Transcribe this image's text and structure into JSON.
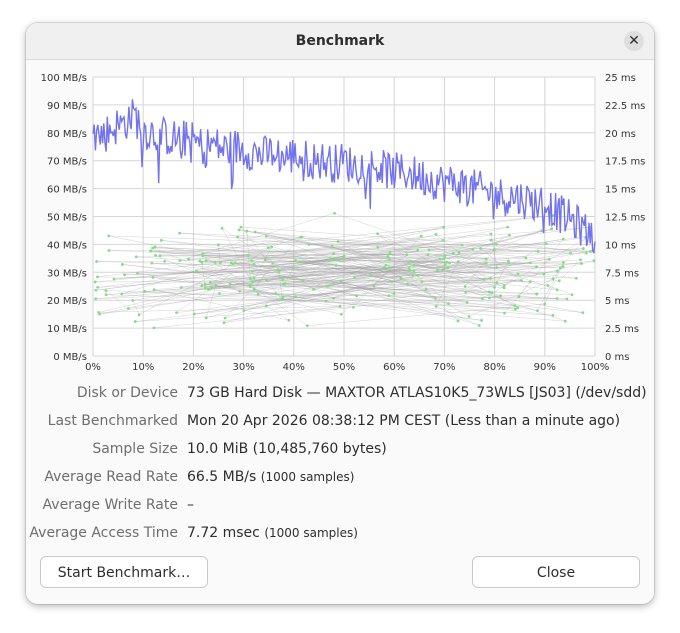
{
  "window": {
    "title": "Benchmark",
    "close_icon": "close-icon"
  },
  "info": {
    "disk_label": "Disk or Device",
    "disk_value": "73 GB Hard Disk — MAXTOR ATLAS10K5_73WLS [JS03] (/dev/sdd)",
    "last_label": "Last Benchmarked",
    "last_value": "Mon 20 Apr 2026 08:38:12 PM CEST (Less than a minute ago)",
    "sample_label": "Sample Size",
    "sample_value": "10.0 MiB (10,485,760 bytes)",
    "read_label": "Average Read Rate",
    "read_value": "66.5 MB/s",
    "read_samples": "(1000 samples)",
    "write_label": "Average Write Rate",
    "write_value": "–",
    "access_label": "Average Access Time",
    "access_value": "7.72 msec",
    "access_samples": "(1000 samples)"
  },
  "buttons": {
    "start_label": "Start Benchmark…",
    "close_label": "Close"
  },
  "chart_data": {
    "type": "line",
    "x_ticks": [
      "0%",
      "10%",
      "20%",
      "30%",
      "40%",
      "50%",
      "60%",
      "70%",
      "80%",
      "90%",
      "100%"
    ],
    "y_left_ticks": [
      "0 MB/s",
      "10 MB/s",
      "20 MB/s",
      "30 MB/s",
      "40 MB/s",
      "50 MB/s",
      "60 MB/s",
      "70 MB/s",
      "80 MB/s",
      "90 MB/s",
      "100 MB/s"
    ],
    "y_right_ticks": [
      "0 ms",
      "2.5 ms",
      "5 ms",
      "7.5 ms",
      "10 ms",
      "12.5 ms",
      "15 ms",
      "17.5 ms",
      "20 ms",
      "22.5 ms",
      "25 ms"
    ],
    "xlim": [
      0,
      100
    ],
    "ylim_left": [
      0,
      100
    ],
    "ylim_right": [
      0,
      25
    ],
    "grid": true,
    "read_rate_color": "#7373ee",
    "access_point_color": "#7ee07e",
    "access_line_color": "#9a9a9a",
    "series": [
      {
        "name": "",
        "axis": "left",
        "x": [
          0,
          2,
          4,
          6,
          8,
          10,
          12,
          14,
          16,
          18,
          20,
          22,
          24,
          26,
          28,
          30,
          32,
          34,
          36,
          38,
          40,
          42,
          44,
          46,
          48,
          50,
          52,
          54,
          56,
          58,
          60,
          62,
          64,
          66,
          68,
          70,
          72,
          74,
          76,
          78,
          80,
          82,
          84,
          86,
          88,
          90,
          92,
          94,
          96,
          98,
          100
        ],
        "values": [
          80,
          79,
          82,
          83,
          87,
          81,
          80,
          79,
          78,
          78,
          77,
          75,
          76,
          74,
          75,
          74,
          73,
          72,
          73,
          71,
          72,
          71,
          70,
          70,
          69,
          70,
          68,
          69,
          68,
          67,
          66,
          66,
          65,
          64,
          63,
          62,
          62,
          61,
          60,
          59,
          58,
          57,
          57,
          56,
          55,
          55,
          52,
          50,
          48,
          45,
          43
        ]
      },
      {
        "name": "",
        "axis": "right",
        "type": "scatter",
        "summary": "1000 access time samples mostly between 2.5 ms and 12.5 ms"
      }
    ]
  }
}
